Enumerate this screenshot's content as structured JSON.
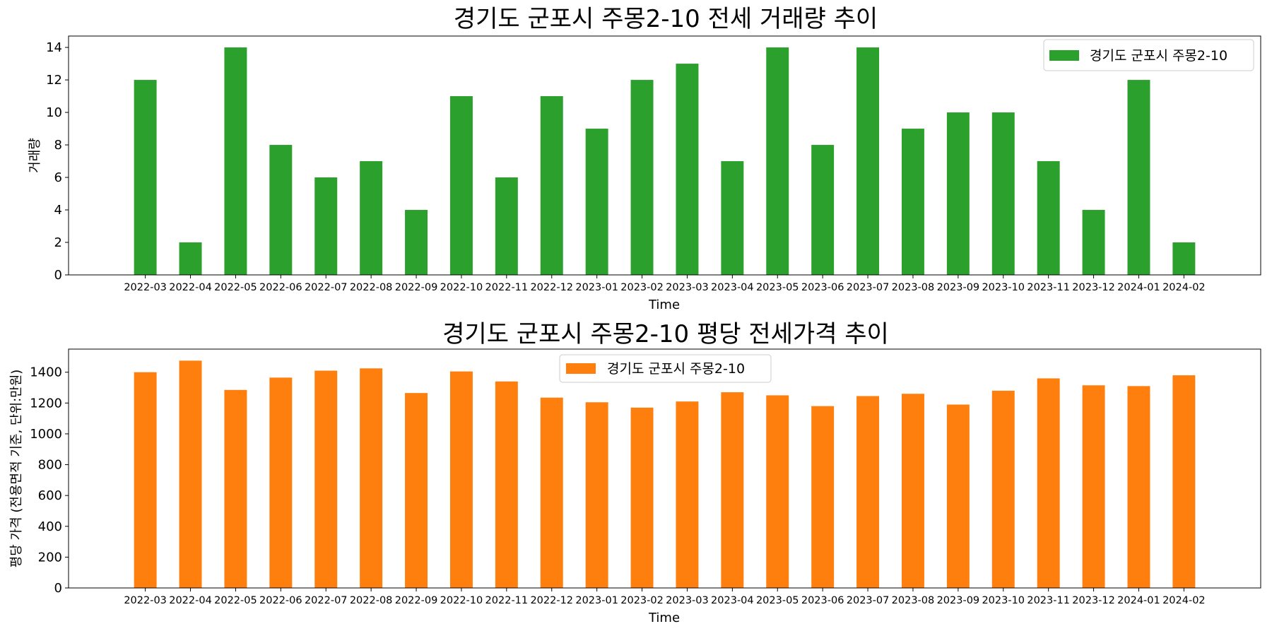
{
  "chart_data": [
    {
      "type": "bar",
      "title": "경기도 군포시 주몽2-10 전세 거래량 추이",
      "xlabel": "Time",
      "ylabel": "거래량",
      "ylim": [
        0,
        14.7
      ],
      "yticks": [
        0,
        2,
        4,
        6,
        8,
        10,
        12,
        14
      ],
      "grid": false,
      "legend_position": "top-right",
      "color": "#2ca02c",
      "categories": [
        "2022-03",
        "2022-04",
        "2022-05",
        "2022-06",
        "2022-07",
        "2022-08",
        "2022-09",
        "2022-10",
        "2022-11",
        "2022-12",
        "2023-01",
        "2023-02",
        "2023-03",
        "2023-04",
        "2023-05",
        "2023-06",
        "2023-07",
        "2023-08",
        "2023-09",
        "2023-10",
        "2023-11",
        "2023-12",
        "2024-01",
        "2024-02"
      ],
      "series": [
        {
          "name": "경기도 군포시 주몽2-10",
          "values": [
            12,
            2,
            14,
            8,
            6,
            7,
            4,
            11,
            6,
            11,
            9,
            12,
            13,
            7,
            14,
            8,
            14,
            9,
            10,
            10,
            7,
            4,
            12,
            2
          ]
        }
      ]
    },
    {
      "type": "bar",
      "title": "경기도 군포시 주몽2-10 평당 전세가격 추이",
      "xlabel": "Time",
      "ylabel": "평당 가격 (전용면적 기준, 단위:만원)",
      "ylim": [
        0,
        1550
      ],
      "yticks": [
        0,
        200,
        400,
        600,
        800,
        1000,
        1200,
        1400
      ],
      "grid": false,
      "legend_position": "top-center",
      "color": "#ff7f0e",
      "categories": [
        "2022-03",
        "2022-04",
        "2022-05",
        "2022-06",
        "2022-07",
        "2022-08",
        "2022-09",
        "2022-10",
        "2022-11",
        "2022-12",
        "2023-01",
        "2023-02",
        "2023-03",
        "2023-04",
        "2023-05",
        "2023-06",
        "2023-07",
        "2023-08",
        "2023-09",
        "2023-10",
        "2023-11",
        "2023-12",
        "2024-01",
        "2024-02"
      ],
      "series": [
        {
          "name": "경기도 군포시 주몽2-10",
          "values": [
            1400,
            1475,
            1285,
            1365,
            1410,
            1425,
            1265,
            1405,
            1340,
            1235,
            1205,
            1170,
            1210,
            1270,
            1250,
            1180,
            1245,
            1260,
            1190,
            1280,
            1360,
            1315,
            1310,
            1380
          ]
        }
      ]
    }
  ]
}
